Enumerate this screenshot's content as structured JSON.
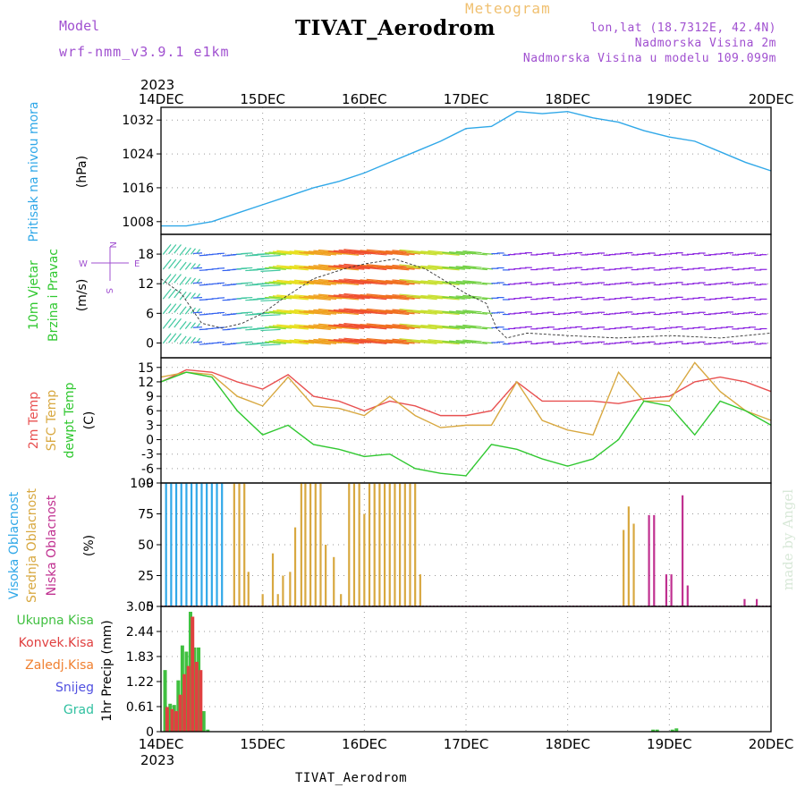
{
  "header": {
    "kind": "Meteogram",
    "title": "TIVAT_Aerodrom",
    "model_label": "Model",
    "model_name": "wrf-nmm_v3.9.1 e1km",
    "coords": "lon,lat (18.7312E, 42.4N)",
    "elevation": "Nadmorska Visina 2m",
    "model_elevation": "Nadmorska Visina u modelu 109.099m",
    "year": "2023",
    "footer": "TIVAT_Aerodrom",
    "credit": "made by Angel"
  },
  "colors": {
    "pressure": "#30a8e8",
    "temp2m": "#e85050",
    "sfc": "#d8a840",
    "dew": "#30c830",
    "high_cloud": "#30a8e8",
    "mid_cloud": "#d8a840",
    "low_cloud": "#c03090",
    "total_precip": "#40c040",
    "convective": "#e04040",
    "frozen": "#f08030",
    "snow": "#5050e0",
    "graupel": "#30c0a0"
  },
  "chart_data": {
    "type": "line",
    "x_ticks": [
      "14DEC",
      "15DEC",
      "16DEC",
      "17DEC",
      "18DEC",
      "19DEC",
      "20DEC"
    ],
    "panels": [
      {
        "id": "pressure",
        "ylabel": [
          "Pritisak na nivou mora",
          "(hPa)"
        ],
        "ylim": [
          1005,
          1035
        ],
        "yticks": [
          1008,
          1016,
          1024,
          1032
        ],
        "series": [
          {
            "x": [
              0,
              0.25,
              0.5,
              0.75,
              1,
              1.25,
              1.5,
              1.75,
              2,
              2.25,
              2.5,
              2.75,
              3,
              3.25,
              3.5,
              3.75,
              4,
              4.25,
              4.5,
              4.75,
              5,
              5.25,
              5.5,
              5.75,
              6
            ],
            "y": [
              1007,
              1007,
              1008,
              1010,
              1012,
              1014,
              1016,
              1017.5,
              1019.5,
              1022,
              1024.5,
              1027,
              1030,
              1030.5,
              1034,
              1033.5,
              1034,
              1032.5,
              1031.5,
              1029.5,
              1028,
              1027,
              1024.5,
              1022,
              1020
            ]
          }
        ]
      },
      {
        "id": "wind",
        "ylabel": [
          "10m Vjetar",
          "Brzina i Pravac",
          "(m/s)"
        ],
        "compass": {
          "n": "N",
          "s": "S",
          "e": "E",
          "w": "W"
        },
        "ylim": [
          -3,
          22
        ],
        "yticks": [
          0,
          6,
          12,
          18
        ],
        "series": [
          {
            "name": "speed",
            "x": [
              0,
              0.2,
              0.4,
              0.6,
              0.8,
              1,
              1.2,
              1.5,
              1.8,
              2,
              2.3,
              2.6,
              3,
              3.2,
              3.3,
              3.4,
              3.6,
              4,
              4.5,
              5,
              5.5,
              6
            ],
            "y": [
              13,
              10,
              4,
              3,
              4,
              6,
              9,
              13,
              15,
              16,
              17,
              15,
              10,
              8,
              3,
              1,
              2,
              1.5,
              1,
              1.5,
              1,
              2
            ]
          }
        ]
      },
      {
        "id": "temp",
        "ylabel": [
          "2m Temp",
          "SFC Temp",
          "dewpt Temp",
          "(C)"
        ],
        "ylim": [
          -9,
          17
        ],
        "yticks": [
          -9,
          -6,
          -3,
          0,
          3,
          6,
          9,
          12,
          15
        ],
        "series": [
          {
            "name": "2m Temp",
            "x": [
              0,
              0.25,
              0.5,
              0.75,
              1,
              1.25,
              1.5,
              1.75,
              2,
              2.25,
              2.5,
              2.75,
              3,
              3.25,
              3.5,
              3.75,
              4,
              4.25,
              4.5,
              4.75,
              5,
              5.25,
              5.5,
              5.75,
              6
            ],
            "y": [
              12,
              14.5,
              14,
              12,
              10.5,
              13.5,
              9,
              8,
              6,
              8,
              7,
              5,
              5,
              6,
              12,
              8,
              8,
              8,
              7.5,
              8.5,
              9,
              12,
              13,
              12,
              10
            ]
          },
          {
            "name": "SFC Temp",
            "x": [
              0,
              0.25,
              0.5,
              0.75,
              1,
              1.25,
              1.5,
              1.75,
              2,
              2.25,
              2.5,
              2.75,
              3,
              3.25,
              3.5,
              3.75,
              4,
              4.25,
              4.5,
              4.75,
              5,
              5.25,
              5.5,
              5.75,
              6
            ],
            "y": [
              13,
              14,
              13.5,
              9,
              7,
              13,
              7,
              6.5,
              5,
              9,
              5,
              2.5,
              3,
              3,
              12,
              4,
              2,
              1,
              14,
              8,
              8,
              16,
              10,
              6,
              4
            ]
          },
          {
            "name": "dewpt Temp",
            "x": [
              0,
              0.25,
              0.5,
              0.75,
              1,
              1.25,
              1.5,
              1.75,
              2,
              2.25,
              2.5,
              2.75,
              3,
              3.25,
              3.5,
              3.75,
              4,
              4.25,
              4.5,
              4.75,
              5,
              5.25,
              5.5,
              5.75,
              6
            ],
            "y": [
              12,
              14,
              13,
              6,
              1,
              3,
              -1,
              -2,
              -3.5,
              -3,
              -6,
              -7,
              -7.5,
              -1,
              -2,
              -4,
              -5.5,
              -4,
              0,
              8,
              7,
              1,
              8,
              6,
              3
            ]
          }
        ]
      },
      {
        "id": "cloud",
        "ylabel": [
          "Visoka Oblacnost",
          "Srednja Oblacnost",
          "Niska Oblacnost",
          "(%)"
        ],
        "ylim": [
          0,
          100
        ],
        "yticks": [
          0,
          25,
          50,
          75,
          100
        ],
        "series": [
          {
            "name": "Visoka Oblacnost",
            "x": [
              0.05,
              0.1,
              0.15,
              0.2,
              0.25,
              0.3,
              0.35,
              0.4,
              0.45,
              0.5,
              0.55,
              0.6
            ],
            "y": [
              100,
              100,
              100,
              100,
              100,
              100,
              100,
              100,
              100,
              100,
              100,
              100
            ]
          },
          {
            "name": "Srednja Oblacnost",
            "x": [
              0.72,
              0.77,
              0.82,
              0.86,
              1.0,
              1.1,
              1.15,
              1.2,
              1.27,
              1.32,
              1.38,
              1.42,
              1.47,
              1.52,
              1.57,
              1.62,
              1.7,
              1.77,
              1.85,
              1.9,
              1.95,
              2.0,
              2.05,
              2.1,
              2.15,
              2.2,
              2.25,
              2.3,
              2.35,
              2.4,
              2.45,
              2.5,
              2.55,
              4.55,
              4.6,
              4.65
            ],
            "y": [
              100,
              100,
              100,
              28,
              10,
              43,
              10,
              25,
              28,
              64,
              100,
              100,
              100,
              100,
              100,
              50,
              40,
              10,
              100,
              100,
              100,
              75,
              100,
              100,
              100,
              100,
              100,
              100,
              100,
              100,
              100,
              100,
              26,
              62,
              81,
              67
            ]
          },
          {
            "name": "Niska Oblacnost",
            "x": [
              4.8,
              4.85,
              4.97,
              5.02,
              5.13,
              5.18,
              5.74,
              5.86
            ],
            "y": [
              74,
              74,
              26,
              26,
              90,
              17,
              6,
              6
            ]
          }
        ]
      },
      {
        "id": "precip",
        "ylabel": [
          "1hr Precip (mm)"
        ],
        "legend": [
          "Ukupna Kisa",
          "Konvek.Kisa",
          "Zaledj.Kisa",
          "Snijeg",
          "Grad"
        ],
        "ylim": [
          0,
          3.05
        ],
        "yticks": [
          0,
          0.61,
          1.22,
          1.83,
          2.44,
          3.05
        ],
        "series": [
          {
            "name": "Ukupna Kisa",
            "x": [
              0.04,
              0.09,
              0.13,
              0.17,
              0.21,
              0.25,
              0.29,
              0.33,
              0.37,
              0.42,
              0.46,
              4.84,
              4.88,
              5.03,
              5.07
            ],
            "y": [
              1.5,
              0.68,
              0.65,
              1.25,
              2.1,
              1.95,
              2.92,
              2.05,
              2.05,
              0.5,
              0.05,
              0.05,
              0.05,
              0.05,
              0.08
            ]
          },
          {
            "name": "Konvek.Kisa",
            "x": [
              0.06,
              0.11,
              0.15,
              0.19,
              0.23,
              0.27,
              0.31,
              0.35,
              0.39
            ],
            "y": [
              0.6,
              0.55,
              0.5,
              0.9,
              1.4,
              1.6,
              2.8,
              1.7,
              1.5
            ]
          }
        ]
      }
    ]
  }
}
